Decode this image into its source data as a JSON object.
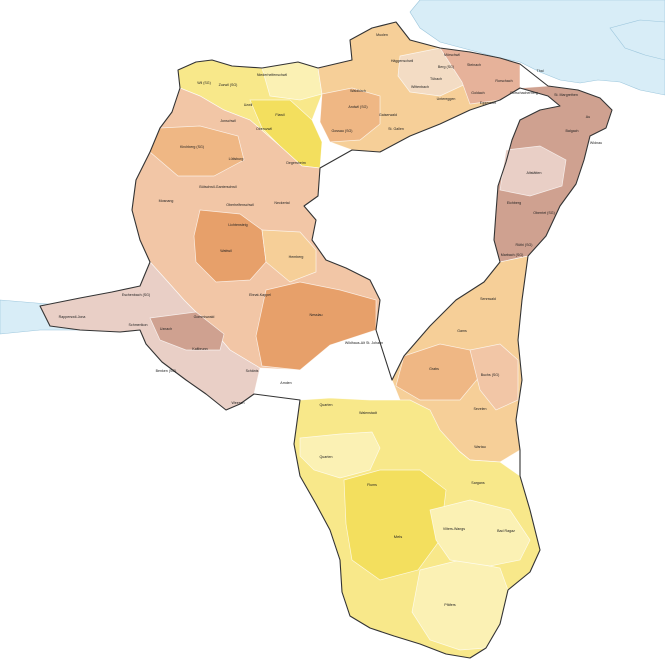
{
  "map": {
    "colors": {
      "water": "#d8edf7",
      "yellow": "#f8e88a",
      "yellow_light": "#fbf1b4",
      "yellow_strong": "#f3df5e",
      "orange_light": "#f6cf98",
      "orange": "#efb784",
      "orange_strong": "#e7a06a",
      "peach": "#f2c6a6",
      "salmon": "#e6b29a",
      "rose": "#e9cfc6",
      "brown": "#cfa190",
      "beige": "#f3dcc4"
    },
    "labels": {
      "rorschach": "Rorschach",
      "goldach": "Goldach",
      "thal": "Thal",
      "st_margrethen": "St. Margrethen",
      "au": "Au",
      "widnau": "Widnau",
      "balgach": "Balgach",
      "altstaetten": "Altstätten",
      "eichberg": "Eichberg",
      "oberriet": "Oberriet (SG)",
      "ruethi": "Rüthi (SG)",
      "sennwald": "Sennwald",
      "gams": "Gams",
      "grabs": "Grabs",
      "buchs": "Buchs (SG)",
      "sevelen": "Sevelen",
      "wartau": "Wartau",
      "sargans": "Sargans",
      "bad_ragaz": "Bad Ragaz",
      "pfaefers": "Pfäfers",
      "vilters_wangs": "Vilters-Wangs",
      "mels": "Mels",
      "flums": "Flums",
      "quarten": "Quarten",
      "walenstadt": "Walenstadt",
      "amden": "Amden",
      "schaenis": "Schänis",
      "weesen": "Weesen",
      "benken": "Benken (SG)",
      "kaltbrunn": "Kaltbrunn",
      "gommiswald": "Gommiswald",
      "uznach": "Uznach",
      "schmerikon": "Schmerikon",
      "rapperswil_jona": "Rapperswil-Jona",
      "eschenbach": "Eschenbach (SG)",
      "wildhaus": "Wildhaus-Alt St. Johann",
      "nesslau": "Nesslau",
      "ebnat_kappel": "Ebnat-Kappel",
      "wattwil": "Wattwil",
      "lichtensteig": "Lichtensteig",
      "hemberg": "Hemberg",
      "neckertal": "Neckertal",
      "mosnang": "Mosnang",
      "buetschwil": "Bütschwil-Ganterschwil",
      "kirchberg": "Kirchberg (SG)",
      "luetisburg": "Lütisburg",
      "oberhelfenschwil": "Oberhelfenschwil",
      "wil": "Wil (SG)",
      "zuzwil": "Zuzwil (SG)",
      "niederhelfenschwil": "Niederhelfenschwil",
      "uzwil": "Uzwil",
      "oberuzwil": "Oberuzwil",
      "jonschwil": "Jonschwil",
      "flawil": "Flawil",
      "degersheim": "Degersheim",
      "gossau": "Gossau (SG)",
      "andwil": "Andwil (SG)",
      "waldkirch": "Waldkirch",
      "gaiserwald": "Gaiserwald",
      "st_gallen": "St. Gallen",
      "wittenbach": "Wittenbach",
      "haeggenschwil": "Häggenschwil",
      "muolen": "Muolen",
      "berg": "Berg (SG)",
      "tuebach": "Tübach",
      "untereggen": "Untereggen",
      "eggersriet": "Eggersriet",
      "moersch": "Mörschwil",
      "steinach": "Steinach",
      "rorschacherberg": "Rorschacherberg",
      "muolen2": "Muolen",
      "kirchberg2": "Kirchberg (SG)",
      "rebstein": "Rebstein",
      "marbach": "Marbach (SG)",
      "diepoldsau": "Diepoldsau",
      "berneck": "Berneck",
      "rheineck": "Rheineck"
    }
  }
}
